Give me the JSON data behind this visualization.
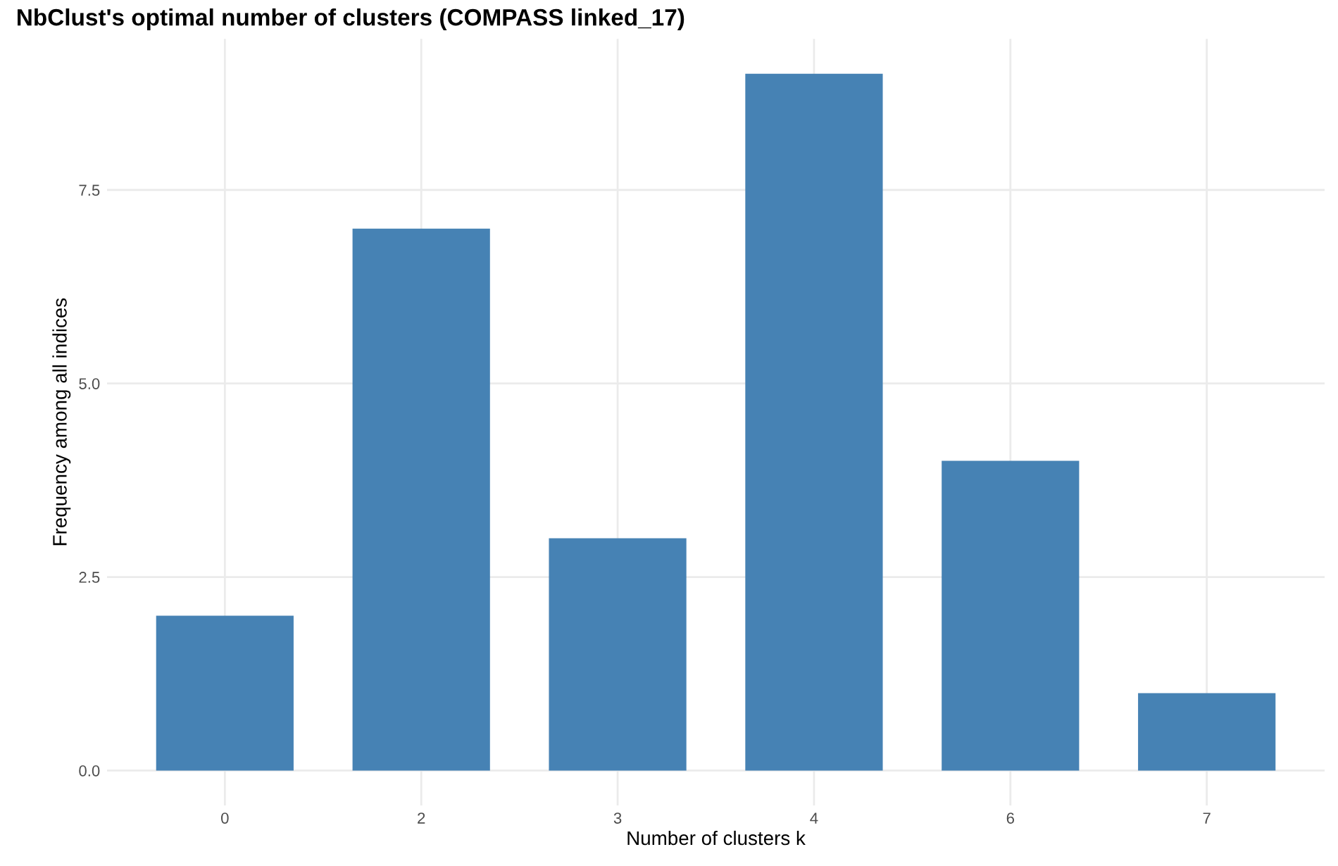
{
  "chart_data": {
    "type": "bar",
    "title": "NbClust's optimal number of clusters (COMPASS linked_17)",
    "xlabel": "Number of clusters k",
    "ylabel": "Frequency among all indices",
    "categories": [
      "0",
      "2",
      "3",
      "4",
      "6",
      "7"
    ],
    "values": [
      2,
      7,
      3,
      9,
      4,
      1
    ],
    "color": "#4682b4",
    "ylim": [
      -0.45,
      9.45
    ],
    "yticks": [
      {
        "value": 0,
        "label": "0.0"
      },
      {
        "value": 2.5,
        "label": "2.5"
      },
      {
        "value": 5,
        "label": "5.0"
      },
      {
        "value": 7.5,
        "label": "7.5"
      }
    ],
    "grid": true,
    "legend": false
  }
}
